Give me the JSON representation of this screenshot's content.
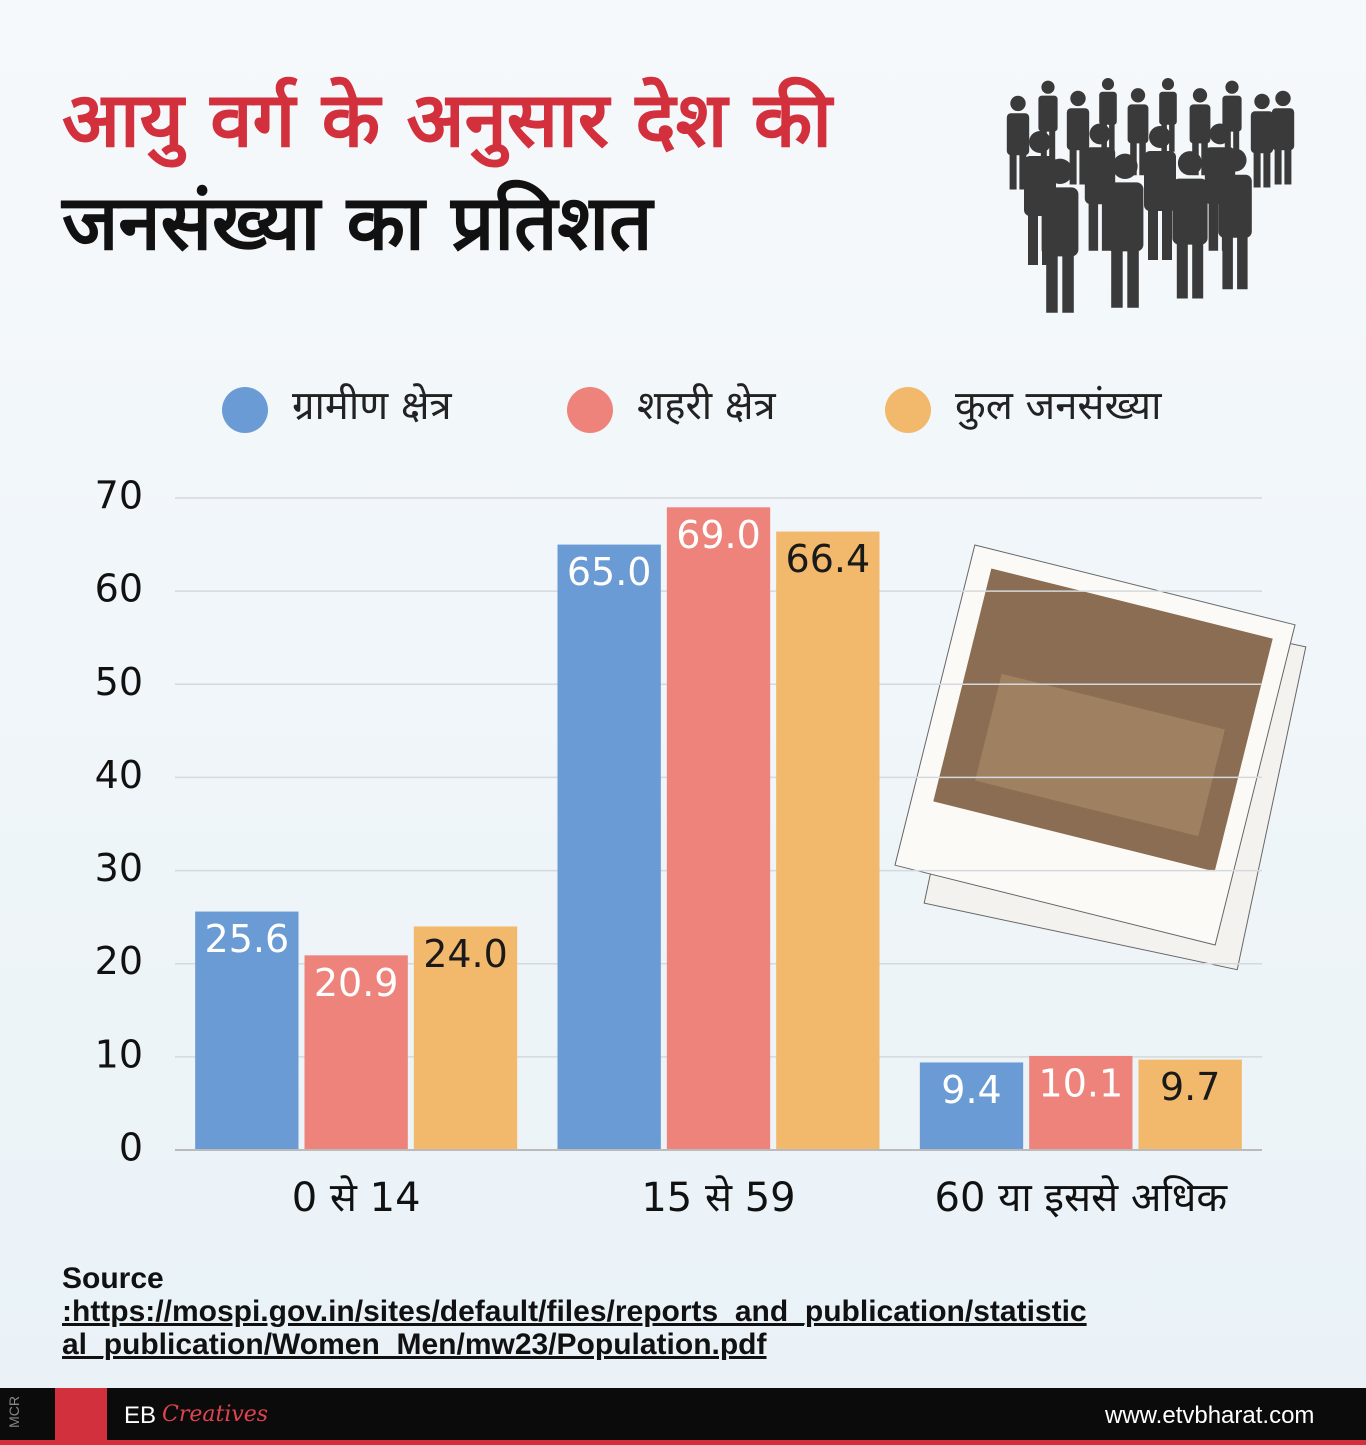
{
  "chart_data": {
    "type": "bar",
    "title_line1": "आयु वर्ग के अनुसार देश की",
    "title_line2": "जनसंख्या का प्रतिशत",
    "categories": [
      "0 से 14",
      "15 से 59",
      "60 या इससे अधिक"
    ],
    "series": [
      {
        "name": "ग्रामीण क्षेत्र",
        "color": "#6a9bd4",
        "label_color": "#ffffff",
        "values": [
          25.6,
          65.0,
          9.4
        ],
        "value_labels": [
          "25.6",
          "65.0",
          "9.4"
        ]
      },
      {
        "name": "शहरी क्षेत्र",
        "color": "#ee837c",
        "label_color": "#ffffff",
        "values": [
          20.9,
          69.0,
          10.1
        ],
        "value_labels": [
          "20.9",
          "69.0",
          "10.1"
        ]
      },
      {
        "name": "कुल जनसंख्या",
        "color": "#f2b86c",
        "label_color": "#1a1a1a",
        "values": [
          24.0,
          66.4,
          9.7
        ],
        "value_labels": [
          "24.0",
          "66.4",
          "9.7"
        ]
      }
    ],
    "ylim": [
      0,
      70
    ],
    "yticks": [
      0,
      10,
      20,
      30,
      40,
      50,
      60,
      70
    ],
    "grid": true,
    "source_label": "Source",
    "source_url": ":https://mospi.gov.in/sites/default/files/reports_and_publication/statistical_publication/Women_Men/mw23/Population.pdf"
  },
  "footer": {
    "side_tag": "MCR",
    "brand": "EB",
    "brand_script": "Creatives",
    "website": "www.etvbharat.com"
  }
}
